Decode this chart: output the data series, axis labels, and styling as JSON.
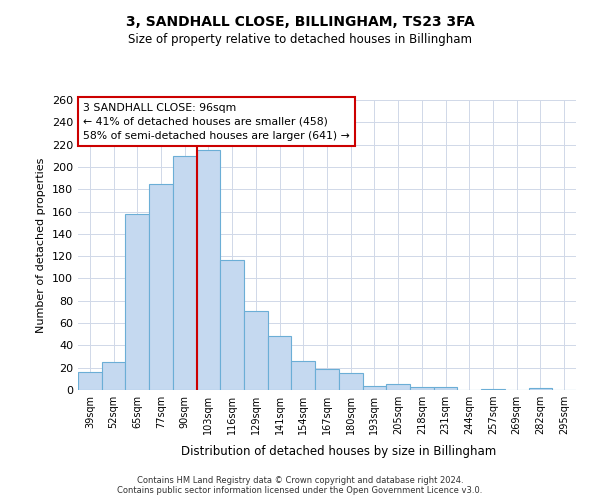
{
  "title": "3, SANDHALL CLOSE, BILLINGHAM, TS23 3FA",
  "subtitle": "Size of property relative to detached houses in Billingham",
  "xlabel": "Distribution of detached houses by size in Billingham",
  "ylabel": "Number of detached properties",
  "categories": [
    "39sqm",
    "52sqm",
    "65sqm",
    "77sqm",
    "90sqm",
    "103sqm",
    "116sqm",
    "129sqm",
    "141sqm",
    "154sqm",
    "167sqm",
    "180sqm",
    "193sqm",
    "205sqm",
    "218sqm",
    "231sqm",
    "244sqm",
    "257sqm",
    "269sqm",
    "282sqm",
    "295sqm"
  ],
  "bar_heights": [
    16,
    25,
    158,
    185,
    210,
    215,
    117,
    71,
    48,
    26,
    19,
    15,
    4,
    5,
    3,
    3,
    0,
    1,
    0,
    2,
    0
  ],
  "bar_color": "#c5d9f0",
  "bar_edge_color": "#6baed6",
  "ylim": [
    0,
    260
  ],
  "yticks": [
    0,
    20,
    40,
    60,
    80,
    100,
    120,
    140,
    160,
    180,
    200,
    220,
    240,
    260
  ],
  "vline_x": 4.5,
  "vline_color": "#cc0000",
  "annotation_text": "3 SANDHALL CLOSE: 96sqm\n← 41% of detached houses are smaller (458)\n58% of semi-detached houses are larger (641) →",
  "annotation_box_color": "#ffffff",
  "annotation_box_edge": "#cc0000",
  "footer_line1": "Contains HM Land Registry data © Crown copyright and database right 2024.",
  "footer_line2": "Contains public sector information licensed under the Open Government Licence v3.0.",
  "bg_color": "#ffffff",
  "grid_color": "#d0d8e8"
}
